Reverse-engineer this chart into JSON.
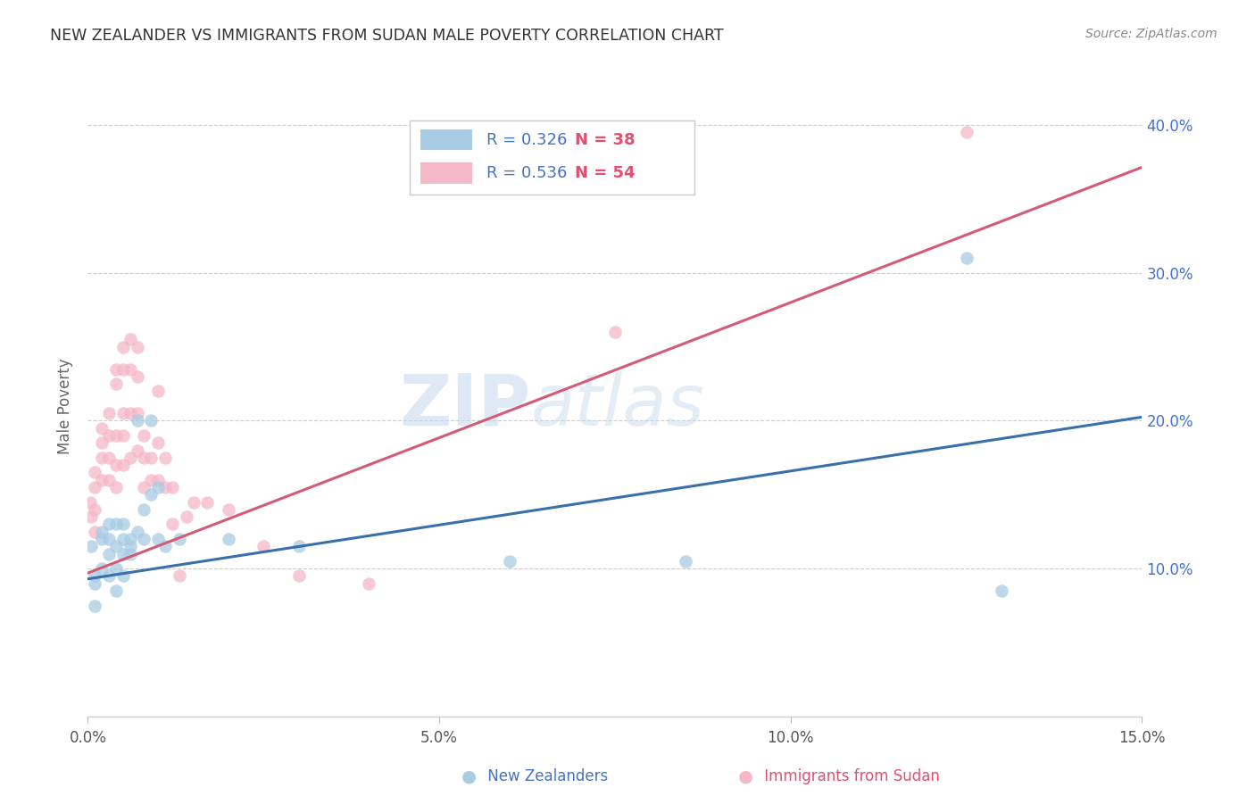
{
  "title": "NEW ZEALANDER VS IMMIGRANTS FROM SUDAN MALE POVERTY CORRELATION CHART",
  "source": "Source: ZipAtlas.com",
  "ylabel": "Male Poverty",
  "xlim": [
    0.0,
    0.15
  ],
  "ylim": [
    0.0,
    0.42
  ],
  "yticks": [
    0.0,
    0.1,
    0.2,
    0.3,
    0.4
  ],
  "xticks": [
    0.0,
    0.05,
    0.1,
    0.15
  ],
  "xtick_labels": [
    "0.0%",
    "5.0%",
    "10.0%",
    "15.0%"
  ],
  "ytick_labels": [
    "",
    "10.0%",
    "20.0%",
    "30.0%",
    "40.0%"
  ],
  "blue_color": "#a8cce4",
  "pink_color": "#f4b8c8",
  "blue_line_color": "#3a6fad",
  "pink_line_color": "#d45b78",
  "legend_r_blue": "R = 0.326",
  "legend_n_blue": "N = 38",
  "legend_r_pink": "R = 0.536",
  "legend_n_pink": "N = 54",
  "legend_text_color": "#4472c4",
  "legend_n_color": "#e05070",
  "watermark_zip": "ZIP",
  "watermark_atlas": "atlas",
  "right_tick_color": "#4472c4",
  "ylabel_color": "#666666",
  "source_color": "#888888",
  "title_color": "#333333",
  "blue_line_intercept": 0.093,
  "blue_line_slope": 0.73,
  "pink_line_intercept": 0.097,
  "pink_line_slope": 1.83,
  "nz_x": [
    0.0005,
    0.001,
    0.001,
    0.001,
    0.002,
    0.002,
    0.002,
    0.003,
    0.003,
    0.003,
    0.003,
    0.004,
    0.004,
    0.004,
    0.004,
    0.005,
    0.005,
    0.005,
    0.005,
    0.006,
    0.006,
    0.006,
    0.007,
    0.007,
    0.008,
    0.008,
    0.009,
    0.009,
    0.01,
    0.01,
    0.011,
    0.013,
    0.02,
    0.03,
    0.06,
    0.085,
    0.125,
    0.13
  ],
  "nz_y": [
    0.115,
    0.095,
    0.09,
    0.075,
    0.125,
    0.12,
    0.1,
    0.13,
    0.12,
    0.11,
    0.095,
    0.13,
    0.115,
    0.1,
    0.085,
    0.13,
    0.12,
    0.11,
    0.095,
    0.12,
    0.115,
    0.11,
    0.125,
    0.2,
    0.14,
    0.12,
    0.2,
    0.15,
    0.155,
    0.12,
    0.115,
    0.12,
    0.12,
    0.115,
    0.105,
    0.105,
    0.31,
    0.085
  ],
  "sudan_x": [
    0.0003,
    0.0005,
    0.001,
    0.001,
    0.001,
    0.001,
    0.002,
    0.002,
    0.002,
    0.002,
    0.003,
    0.003,
    0.003,
    0.003,
    0.004,
    0.004,
    0.004,
    0.004,
    0.004,
    0.005,
    0.005,
    0.005,
    0.005,
    0.005,
    0.006,
    0.006,
    0.006,
    0.006,
    0.007,
    0.007,
    0.007,
    0.007,
    0.008,
    0.008,
    0.008,
    0.009,
    0.009,
    0.01,
    0.01,
    0.01,
    0.011,
    0.011,
    0.012,
    0.012,
    0.013,
    0.014,
    0.015,
    0.017,
    0.02,
    0.025,
    0.03,
    0.04,
    0.075,
    0.125
  ],
  "sudan_y": [
    0.145,
    0.135,
    0.165,
    0.155,
    0.14,
    0.125,
    0.195,
    0.185,
    0.175,
    0.16,
    0.205,
    0.19,
    0.175,
    0.16,
    0.235,
    0.225,
    0.19,
    0.17,
    0.155,
    0.25,
    0.235,
    0.205,
    0.19,
    0.17,
    0.255,
    0.235,
    0.205,
    0.175,
    0.25,
    0.23,
    0.205,
    0.18,
    0.19,
    0.175,
    0.155,
    0.175,
    0.16,
    0.22,
    0.185,
    0.16,
    0.175,
    0.155,
    0.155,
    0.13,
    0.095,
    0.135,
    0.145,
    0.145,
    0.14,
    0.115,
    0.095,
    0.09,
    0.26,
    0.395
  ]
}
